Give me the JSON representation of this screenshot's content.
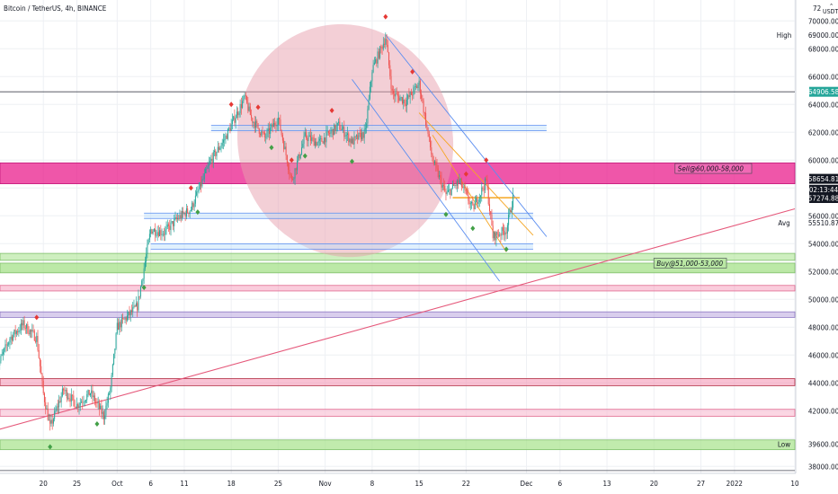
{
  "header": {
    "title": "Bitcoin / TetherUS, 4h, BINANCE"
  },
  "axis_controls": {
    "currency": "USDT",
    "count": "72"
  },
  "colors": {
    "background": "#ffffff",
    "grid": "#eef0f4",
    "up_candle": "#26a69a",
    "down_candle": "#ef5350",
    "pink_zone": "#e91e8c",
    "green_zone": "#a6e28a",
    "ellipse": "#e8a0ad",
    "trendline": "#e5587a",
    "blue_line": "#5b8ef0",
    "orange_line": "#f5a623",
    "price_tag_dark": "#131722",
    "price_tag_green": "#26a69a"
  },
  "chart_data": {
    "type": "candlestick",
    "title": "Bitcoin / TetherUS, 4h, BINANCE",
    "ylim": [
      37500,
      71500
    ],
    "y_ticks": [
      38000,
      39600,
      42000,
      44000,
      46000,
      48000,
      50000,
      52000,
      54000,
      55510.87,
      56000,
      57274.88,
      58654.81,
      60000,
      62000,
      64000,
      64906.58,
      66000,
      68000,
      69000,
      70000
    ],
    "y_tick_labels": [
      "38000.00",
      "39600.00",
      "42000.00",
      "44000.00",
      "46000.00",
      "48000.00",
      "50000.00",
      "52000.00",
      "54000.00",
      "55510.87",
      "56000.00",
      "57274.88",
      "58654.81",
      "60000.00",
      "62000.00",
      "64000.00",
      "64906.58",
      "66000.00",
      "68000.00",
      "69000.00",
      "70000.00"
    ],
    "x_ticks": [
      "13",
      "20",
      "25",
      "Oct",
      "6",
      "11",
      "18",
      "25",
      "Nov",
      "8",
      "15",
      "22",
      "Dec",
      "6",
      "13",
      "20",
      "27",
      "2022",
      "10"
    ],
    "x_range": [
      "2021-09-13",
      "2022-01-10"
    ],
    "annotations": [
      {
        "type": "label",
        "text": "Sell@60,000-58,000",
        "price": 59400
      },
      {
        "type": "label",
        "text": "Buy@51,000-53,000",
        "price": 52600
      },
      {
        "type": "label",
        "text": "High",
        "price": 69000
      },
      {
        "type": "label",
        "text": "Avg",
        "price": 55510.87
      },
      {
        "type": "label",
        "text": "Low",
        "price": 39600
      },
      {
        "type": "countdown",
        "text": "02:13:44",
        "price": 57900
      }
    ],
    "zones": [
      {
        "kind": "sell",
        "from": 58300,
        "to": 59800
      },
      {
        "kind": "buy-upper",
        "from": 52800,
        "to": 53300
      },
      {
        "kind": "buy",
        "from": 51900,
        "to": 52600
      },
      {
        "kind": "pink-1",
        "from": 50600,
        "to": 51000
      },
      {
        "kind": "purple",
        "from": 48700,
        "to": 49100
      },
      {
        "kind": "red-1",
        "from": 43800,
        "to": 44300
      },
      {
        "kind": "pink-2",
        "from": 41600,
        "to": 42100
      },
      {
        "kind": "green-low",
        "from": 39200,
        "to": 39900
      }
    ],
    "key_lines": [
      64906.58,
      37700
    ],
    "candles": {
      "start": "2021-09-13",
      "interval_hours": 4,
      "count": 470,
      "up_color": "#26a69a",
      "down_color": "#ef5350",
      "path": [
        [
          "2021-09-13",
          45000
        ],
        [
          "2021-09-15",
          47200
        ],
        [
          "2021-09-17",
          48200
        ],
        [
          "2021-09-19",
          47200
        ],
        [
          "2021-09-20",
          43200
        ],
        [
          "2021-09-21",
          40800
        ],
        [
          "2021-09-23",
          43500
        ],
        [
          "2021-09-25",
          42400
        ],
        [
          "2021-09-27",
          43300
        ],
        [
          "2021-09-29",
          41600
        ],
        [
          "2021-09-30",
          43600
        ],
        [
          "2021-10-01",
          48000
        ],
        [
          "2021-10-04",
          49500
        ],
        [
          "2021-10-06",
          55000
        ],
        [
          "2021-10-08",
          54800
        ],
        [
          "2021-10-10",
          55800
        ],
        [
          "2021-10-12",
          56500
        ],
        [
          "2021-10-15",
          60000
        ],
        [
          "2021-10-17",
          61500
        ],
        [
          "2021-10-20",
          64500
        ],
        [
          "2021-10-21",
          63000
        ],
        [
          "2021-10-23",
          61600
        ],
        [
          "2021-10-25",
          63000
        ],
        [
          "2021-10-27",
          58500
        ],
        [
          "2021-10-29",
          61700
        ],
        [
          "2021-10-31",
          61200
        ],
        [
          "2021-11-03",
          62500
        ],
        [
          "2021-11-05",
          61300
        ],
        [
          "2021-11-07",
          62000
        ],
        [
          "2021-11-08",
          66500
        ],
        [
          "2021-11-10",
          68800
        ],
        [
          "2021-11-11",
          64800
        ],
        [
          "2021-11-13",
          64200
        ],
        [
          "2021-11-15",
          65500
        ],
        [
          "2021-11-17",
          60000
        ],
        [
          "2021-11-19",
          57500
        ],
        [
          "2021-11-21",
          58500
        ],
        [
          "2021-11-23",
          56500
        ],
        [
          "2021-11-25",
          58500
        ],
        [
          "2021-11-26",
          54500
        ],
        [
          "2021-11-28",
          55000
        ],
        [
          "2021-11-29",
          57300
        ]
      ]
    },
    "markers": {
      "sell_signals": [
        "2021-09-19",
        "2021-10-12",
        "2021-10-18",
        "2021-10-22",
        "2021-10-27",
        "2021-11-02",
        "2021-11-10",
        "2021-11-14",
        "2021-11-22",
        "2021-11-25"
      ],
      "buy_signals": [
        "2021-09-21",
        "2021-09-28",
        "2021-10-05",
        "2021-10-13",
        "2021-10-24",
        "2021-10-29",
        "2021-11-05",
        "2021-11-19",
        "2021-11-23",
        "2021-11-28"
      ]
    },
    "drawings": {
      "ellipse": {
        "x_center": "2021-11-04",
        "y_center": 61400,
        "x_radius_days": 16,
        "y_radius": 8400
      },
      "trendline": {
        "from": [
          "2021-09-13",
          40600
        ],
        "to": [
          "2022-01-10",
          56500
        ]
      },
      "blue_channels": [
        {
          "y": 62300,
          "x_from": "2021-10-15",
          "x_to": "2021-12-04"
        },
        {
          "y": 56000,
          "x_from": "2021-10-05",
          "x_to": "2021-12-02"
        },
        {
          "y": 53800,
          "x_from": "2021-10-06",
          "x_to": "2021-12-02"
        }
      ],
      "down_channel": {
        "upper": [
          [
            "2021-11-10",
            69000
          ],
          [
            "2021-12-04",
            54500
          ]
        ],
        "lower": [
          [
            "2021-11-05",
            65800
          ],
          [
            "2021-11-27",
            51300
          ]
        ]
      },
      "orange_channel": {
        "upper": [
          [
            "2021-11-15",
            63400
          ],
          [
            "2021-12-02",
            54600
          ]
        ],
        "lower": [
          [
            "2021-11-17",
            61800
          ],
          [
            "2021-11-28",
            53400
          ]
        ]
      },
      "orange_horizontal": {
        "y": 57300,
        "x_from": "2021-11-20",
        "x_to": "2021-11-30"
      }
    }
  }
}
